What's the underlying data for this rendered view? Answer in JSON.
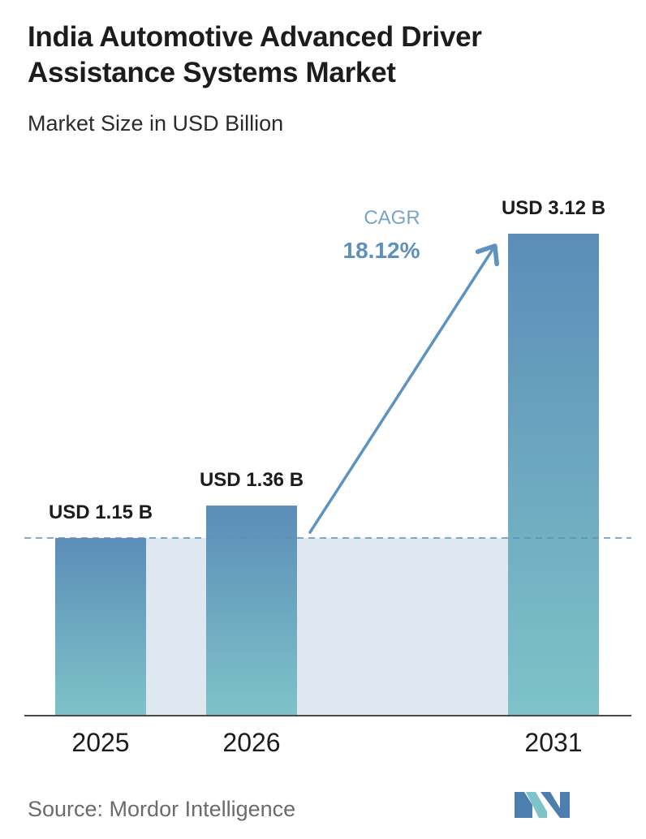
{
  "title": "India Automotive Advanced Driver Assistance Systems Market",
  "subtitle": "Market Size in USD Billion",
  "source": "Source: Mordor Intelligence",
  "cagr": {
    "label": "CAGR",
    "value": "18.12%"
  },
  "colors": {
    "bar_top": "#5b8db8",
    "bar_bottom": "#7ec3c8",
    "band": "#dfe8f0",
    "arrow": "#5f93bf",
    "cagr_label": "#7aa3c6",
    "cagr_value": "#5d90bd",
    "baseline": "#4a4a4a",
    "dashed": "#5a8fb8",
    "logo_dark": "#4d7fae",
    "logo_light": "#7ec3c8"
  },
  "chart_data": {
    "type": "bar",
    "categories": [
      "2025",
      "2026",
      "2031"
    ],
    "values": [
      1.15,
      1.36,
      3.12
    ],
    "data_labels": [
      "USD 1.15 B",
      "USD 1.36 B",
      "USD 3.12 B"
    ],
    "ylabel": "",
    "xlabel": "",
    "ylim": [
      0,
      3.5
    ],
    "grid": false,
    "reference_line": 1.15
  }
}
